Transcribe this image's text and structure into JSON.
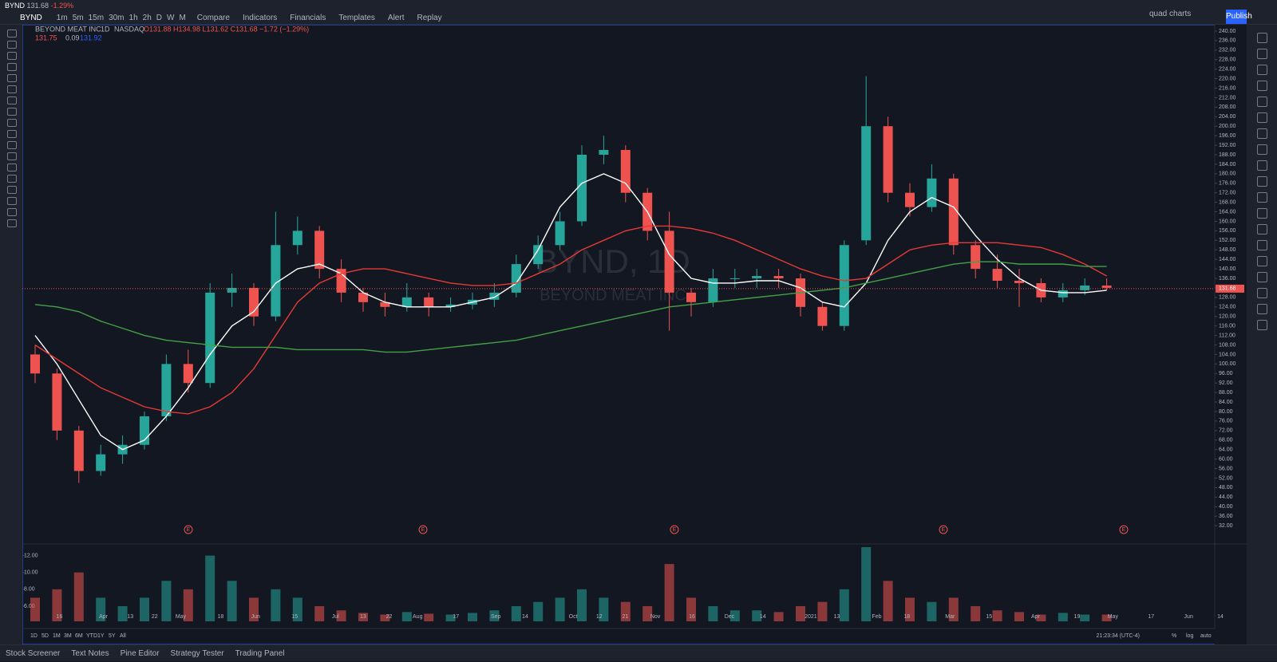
{
  "tab": {
    "symbol": "BYND",
    "price": "131.68",
    "change": "-1.29%"
  },
  "toolbar": {
    "symbol": "BYND",
    "intervals": [
      "1m",
      "5m",
      "15m",
      "30m",
      "1h",
      "2h",
      "D",
      "W",
      "M"
    ],
    "buttons": [
      "Compare",
      "Indicators",
      "Financials",
      "Templates",
      "Alert",
      "Replay"
    ],
    "layout": "quad charts",
    "publish": "Publish"
  },
  "legend": {
    "name": "BEYOND MEAT INC",
    "interval": "1D",
    "exchange": "NASDAQ",
    "ohlc": "O131.88 H134.98 L131.62 C131.68 −1.72 (−1.29%)",
    "bid": "131.75",
    "spread": "0.09",
    "ask": "131.92"
  },
  "watermark": {
    "title": "BYND, 1D",
    "subtitle": "BEYOND MEAT INC"
  },
  "chart": {
    "ylim": [
      28,
      242
    ],
    "yticks": [
      {
        "value": 240,
        "label": "240.00"
      },
      {
        "value": 236,
        "label": "236.00"
      },
      {
        "value": 232,
        "label": "232.00"
      },
      {
        "value": 228,
        "label": "228.00"
      },
      {
        "value": 224,
        "label": "224.00"
      },
      {
        "value": 220,
        "label": "220.00"
      },
      {
        "value": 216,
        "label": "216.00"
      },
      {
        "value": 212,
        "label": "212.00"
      },
      {
        "value": 208,
        "label": "208.00"
      },
      {
        "value": 204,
        "label": "204.00"
      },
      {
        "value": 200,
        "label": "200.00"
      },
      {
        "value": 196,
        "label": "196.00"
      },
      {
        "value": 192,
        "label": "192.00"
      },
      {
        "value": 188,
        "label": "188.00"
      },
      {
        "value": 184,
        "label": "184.00"
      },
      {
        "value": 180,
        "label": "180.00"
      },
      {
        "value": 176,
        "label": "176.00"
      },
      {
        "value": 172,
        "label": "172.00"
      },
      {
        "value": 168,
        "label": "168.00"
      },
      {
        "value": 164,
        "label": "164.00"
      },
      {
        "value": 160,
        "label": "160.00"
      },
      {
        "value": 156,
        "label": "156.00"
      },
      {
        "value": 152,
        "label": "152.00"
      },
      {
        "value": 148,
        "label": "148.00"
      },
      {
        "value": 144,
        "label": "144.00"
      },
      {
        "value": 140,
        "label": "140.00"
      },
      {
        "value": 136,
        "label": "136.00"
      },
      {
        "value": 132,
        "label": "132.00"
      },
      {
        "value": 128,
        "label": "128.00"
      },
      {
        "value": 124,
        "label": "124.00"
      },
      {
        "value": 120,
        "label": "120.00"
      },
      {
        "value": 116,
        "label": "116.00"
      },
      {
        "value": 112,
        "label": "112.00"
      },
      {
        "value": 108,
        "label": "108.00"
      },
      {
        "value": 104,
        "label": "104.00"
      },
      {
        "value": 100,
        "label": "100.00"
      },
      {
        "value": 96,
        "label": "96.00"
      },
      {
        "value": 92,
        "label": "92.00"
      },
      {
        "value": 88,
        "label": "88.00"
      },
      {
        "value": 84,
        "label": "84.00"
      },
      {
        "value": 80,
        "label": "80.00"
      },
      {
        "value": 76,
        "label": "76.00"
      },
      {
        "value": 72,
        "label": "72.00"
      },
      {
        "value": 68,
        "label": "68.00"
      },
      {
        "value": 64,
        "label": "64.00"
      },
      {
        "value": 60,
        "label": "60.00"
      },
      {
        "value": 56,
        "label": "56.00"
      },
      {
        "value": 52,
        "label": "52.00"
      },
      {
        "value": 48,
        "label": "48.00"
      },
      {
        "value": 44,
        "label": "44.00"
      },
      {
        "value": 40,
        "label": "40.00"
      },
      {
        "value": 36,
        "label": "36.00"
      },
      {
        "value": 32,
        "label": "32.00"
      }
    ],
    "last_price": {
      "value": 131.68,
      "label": "131.68"
    },
    "up_color": "#26a69a",
    "down_color": "#ef5350",
    "candles": [
      [
        104,
        108,
        92,
        96
      ],
      [
        96,
        98,
        68,
        72
      ],
      [
        72,
        74,
        50,
        55
      ],
      [
        55,
        66,
        53,
        62
      ],
      [
        62,
        70,
        58,
        66
      ],
      [
        66,
        80,
        64,
        78
      ],
      [
        78,
        104,
        76,
        100
      ],
      [
        100,
        106,
        88,
        92
      ],
      [
        92,
        134,
        90,
        130
      ],
      [
        130,
        138,
        124,
        132
      ],
      [
        132,
        134,
        116,
        120
      ],
      [
        120,
        164,
        118,
        150
      ],
      [
        150,
        162,
        146,
        156
      ],
      [
        156,
        158,
        136,
        140
      ],
      [
        140,
        144,
        126,
        130
      ],
      [
        130,
        132,
        122,
        126
      ],
      [
        126,
        130,
        120,
        124
      ],
      [
        124,
        134,
        122,
        128
      ],
      [
        128,
        130,
        120,
        124
      ],
      [
        124,
        128,
        122,
        125
      ],
      [
        125,
        130,
        123,
        127
      ],
      [
        127,
        134,
        124,
        130
      ],
      [
        130,
        146,
        128,
        142
      ],
      [
        142,
        154,
        140,
        150
      ],
      [
        150,
        164,
        148,
        160
      ],
      [
        160,
        192,
        158,
        188
      ],
      [
        188,
        196,
        184,
        190
      ],
      [
        190,
        192,
        168,
        172
      ],
      [
        172,
        174,
        152,
        156
      ],
      [
        156,
        164,
        114,
        130
      ],
      [
        130,
        132,
        120,
        126
      ],
      [
        126,
        140,
        124,
        136
      ],
      [
        136,
        140,
        132,
        136
      ],
      [
        136,
        140,
        132,
        137
      ],
      [
        137,
        140,
        132,
        136
      ],
      [
        136,
        138,
        120,
        124
      ],
      [
        124,
        126,
        114,
        116
      ],
      [
        116,
        152,
        114,
        150
      ],
      [
        152,
        221,
        150,
        200
      ],
      [
        200,
        204,
        168,
        172
      ],
      [
        172,
        176,
        162,
        166
      ],
      [
        166,
        184,
        164,
        178
      ],
      [
        178,
        180,
        146,
        150
      ],
      [
        150,
        152,
        136,
        140
      ],
      [
        140,
        146,
        132,
        135
      ],
      [
        135,
        140,
        124,
        134
      ],
      [
        134,
        136,
        126,
        128
      ],
      [
        128,
        134,
        126,
        131
      ],
      [
        131,
        136,
        129,
        133
      ],
      [
        133,
        136,
        131,
        132
      ]
    ],
    "ma": [
      {
        "color": "#ffffff",
        "values": [
          112,
          100,
          85,
          70,
          64,
          68,
          78,
          90,
          104,
          116,
          122,
          134,
          140,
          142,
          138,
          130,
          126,
          124,
          124,
          124,
          126,
          128,
          134,
          148,
          166,
          176,
          180,
          176,
          164,
          146,
          136,
          134,
          134,
          135,
          135,
          132,
          126,
          124,
          134,
          152,
          164,
          170,
          166,
          154,
          144,
          136,
          131,
          130,
          130,
          131
        ]
      },
      {
        "color": "#e53935",
        "values": [
          108,
          102,
          96,
          90,
          86,
          82,
          80,
          79,
          82,
          88,
          98,
          112,
          126,
          134,
          138,
          140,
          140,
          138,
          136,
          134,
          133,
          133,
          134,
          138,
          142,
          148,
          152,
          156,
          158,
          158,
          157,
          155,
          152,
          148,
          144,
          140,
          137,
          135,
          136,
          142,
          148,
          150,
          151,
          151,
          151,
          150,
          149,
          146,
          142,
          137
        ]
      },
      {
        "color": "#43a047",
        "values": [
          125,
          124,
          122,
          118,
          115,
          112,
          110,
          109,
          108,
          107,
          107,
          107,
          106,
          106,
          106,
          106,
          105,
          105,
          106,
          107,
          108,
          109,
          110,
          112,
          114,
          116,
          118,
          120,
          122,
          124,
          125,
          126,
          127,
          128,
          129,
          130,
          131,
          132,
          134,
          136,
          138,
          140,
          142,
          143,
          143,
          142,
          142,
          142,
          141,
          141
        ]
      }
    ],
    "earnings": [
      "E",
      "E",
      "E",
      "E",
      "E"
    ],
    "dates": [
      "16",
      "Apr",
      "13",
      "22",
      "May",
      "18",
      "Jun",
      "15",
      "Jul",
      "13",
      "22",
      "Aug",
      "17",
      "Sep",
      "14",
      "Oct",
      "12",
      "21",
      "Nov",
      "16",
      "Dec",
      "14",
      "2021",
      "13",
      "Feb",
      "18",
      "Mar",
      "15",
      "Apr",
      "19",
      "May",
      "17",
      "Jun",
      "14"
    ],
    "volume": {
      "ylim": [
        4.2,
        13
      ],
      "yticks": [
        {
          "value": 12,
          "label": "12.00"
        },
        {
          "value": 10,
          "label": "10.00"
        },
        {
          "value": 8,
          "label": "8.00"
        },
        {
          "value": 6,
          "label": "6.00"
        }
      ],
      "values": [
        7,
        8,
        10,
        7,
        6,
        7,
        9,
        8,
        12,
        9,
        7,
        8,
        7,
        6,
        5.5,
        5.2,
        5,
        5.3,
        5.1,
        5,
        5.2,
        5.5,
        6,
        6.5,
        7,
        8,
        7,
        6.5,
        6,
        11,
        7,
        6,
        5.5,
        5.5,
        5.3,
        6,
        6.5,
        8,
        13,
        9,
        7,
        6.5,
        7,
        6,
        5.5,
        5.3,
        5,
        5.2,
        5,
        5
      ]
    }
  },
  "ranges": [
    "1D",
    "5D",
    "1M",
    "3M",
    "6M",
    "YTD",
    "1Y",
    "5Y",
    "All"
  ],
  "clock": "21:23:34 (UTC-4)",
  "scale": [
    "%",
    "log",
    "auto"
  ],
  "bottom_tabs": [
    "Stock Screener",
    "Text Notes",
    "Pine Editor",
    "Strategy Tester",
    "Trading Panel"
  ]
}
